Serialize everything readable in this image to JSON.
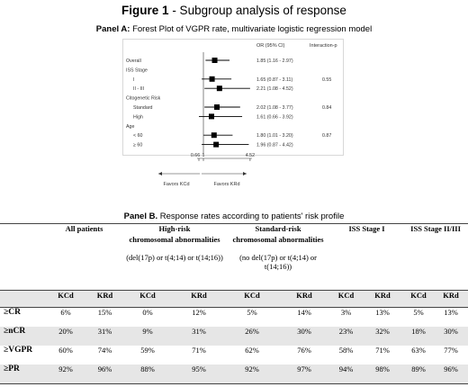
{
  "figure": {
    "title_bold": "Figure 1",
    "title_rest": " - Subgroup analysis of response"
  },
  "panel_a": {
    "title_bold": "Panel A:",
    "title_rest": " Forest Plot of VGPR rate, multivariate logistic regression model",
    "col_or": "OR (95% CI)",
    "col_p": "Interaction-p",
    "rows": [
      {
        "label": "Overall",
        "kind": "item",
        "or": 1.85,
        "lo": 1.16,
        "hi": 2.97,
        "or_text": "1.85 (1.16 - 2.97)",
        "p": ""
      },
      {
        "label": "ISS Stage",
        "kind": "header",
        "or_text": "",
        "p": ""
      },
      {
        "label": "I",
        "kind": "sub",
        "or": 1.65,
        "lo": 0.87,
        "hi": 3.11,
        "or_text": "1.65 (0.87 - 3.11)",
        "p": "0.55"
      },
      {
        "label": "II - III",
        "kind": "sub",
        "or": 2.21,
        "lo": 1.08,
        "hi": 4.52,
        "or_text": "2.21 (1.08 - 4.52)",
        "p": ""
      },
      {
        "label": "Citogenetic Risk",
        "kind": "header",
        "or_text": "",
        "p": ""
      },
      {
        "label": "Standard",
        "kind": "sub",
        "or": 2.02,
        "lo": 1.08,
        "hi": 3.77,
        "or_text": "2.02 (1.08 - 3.77)",
        "p": "0.84"
      },
      {
        "label": "High",
        "kind": "sub",
        "or": 1.61,
        "lo": 0.66,
        "hi": 3.92,
        "or_text": "1.61 (0.66 - 3.92)",
        "p": ""
      },
      {
        "label": "Age",
        "kind": "header",
        "or_text": "",
        "p": ""
      },
      {
        "label": "< 60",
        "kind": "sub",
        "or": 1.8,
        "lo": 1.01,
        "hi": 3.2,
        "or_text": "1.80 (1.01 - 3.20)",
        "p": "0.87"
      },
      {
        "label": "≥ 60",
        "kind": "sub",
        "or": 1.96,
        "lo": 0.87,
        "hi": 4.42,
        "or_text": "1.96 (0.87 - 4.42)",
        "p": ""
      }
    ],
    "axis_ticks": [
      "0.66",
      "1",
      "4.52"
    ],
    "axis_tick_values": [
      0.66,
      1,
      4.52
    ],
    "favors_left": "Favors KCd",
    "favors_right": "Favors KRd"
  },
  "panel_b": {
    "title_bold": "Panel B.",
    "title_rest": " Response rates according to patients' risk profile",
    "groups": [
      {
        "title": "All patients",
        "sub": "",
        "note": ""
      },
      {
        "title": "High-risk",
        "sub": "chromosomal abnormalities",
        "note": "(del(17p) or t(4;14) or t(14;16))"
      },
      {
        "title": "Standard-risk",
        "sub": "chromosomal abnormalities",
        "note": "(no del(17p) or t(4;14) or t(14;16))"
      },
      {
        "title": "ISS Stage I",
        "sub": "",
        "note": ""
      },
      {
        "title": "ISS Stage II/III",
        "sub": "",
        "note": ""
      }
    ],
    "arm_labels": [
      "KCd",
      "KRd"
    ],
    "rows": [
      {
        "label": "≥CR",
        "values": [
          "6%",
          "15%",
          "0%",
          "12%",
          "5%",
          "14%",
          "3%",
          "13%",
          "5%",
          "13%"
        ]
      },
      {
        "label": "≥nCR",
        "values": [
          "20%",
          "31%",
          "9%",
          "31%",
          "26%",
          "30%",
          "23%",
          "32%",
          "18%",
          "30%"
        ]
      },
      {
        "label": "≥VGPR",
        "values": [
          "60%",
          "74%",
          "59%",
          "71%",
          "62%",
          "76%",
          "58%",
          "71%",
          "63%",
          "77%"
        ]
      },
      {
        "label": "≥PR",
        "values": [
          "92%",
          "96%",
          "88%",
          "95%",
          "92%",
          "97%",
          "94%",
          "98%",
          "89%",
          "96%"
        ]
      }
    ]
  }
}
